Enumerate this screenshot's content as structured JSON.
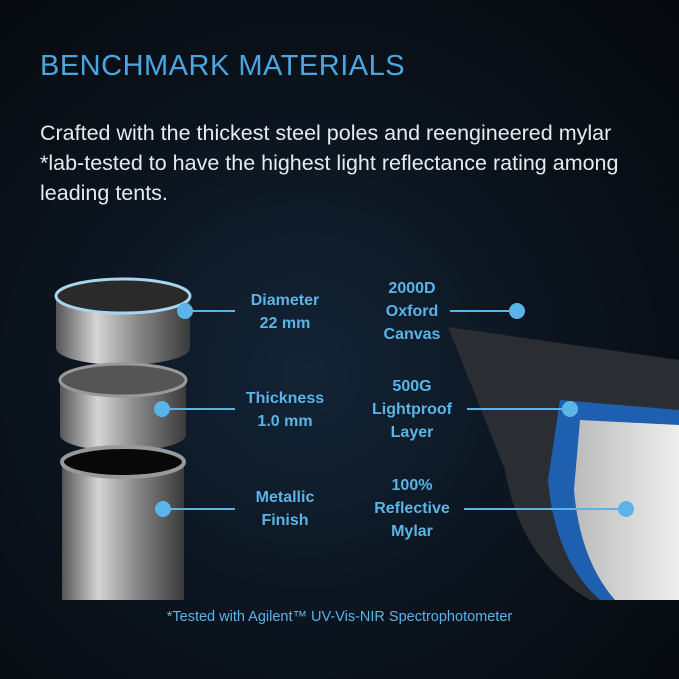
{
  "title": "BENCHMARK MATERIALS",
  "subtitle": "Crafted with the thickest steel poles and reengineered mylar *lab-tested to have the highest light reflectance rating among leading tents.",
  "pole_labels": [
    {
      "line1": "Diameter",
      "line2": "22 mm"
    },
    {
      "line1": "Thickness",
      "line2": "1.0 mm"
    },
    {
      "line1": "Metallic",
      "line2": "Finish"
    }
  ],
  "fabric_labels": [
    {
      "line1": "2000D",
      "line2": "Oxford",
      "line3": "Canvas"
    },
    {
      "line1": "500G",
      "line2": "Lightproof",
      "line3": "Layer"
    },
    {
      "line1": "100%",
      "line2": "Reflective",
      "line3": "Mylar"
    }
  ],
  "footnote": "*Tested with Agilent™ UV-Vis-NIR Spectrophotometer",
  "colors": {
    "accent": "#5ab4e8",
    "title": "#4aa6e0",
    "text": "#e6ebef"
  }
}
